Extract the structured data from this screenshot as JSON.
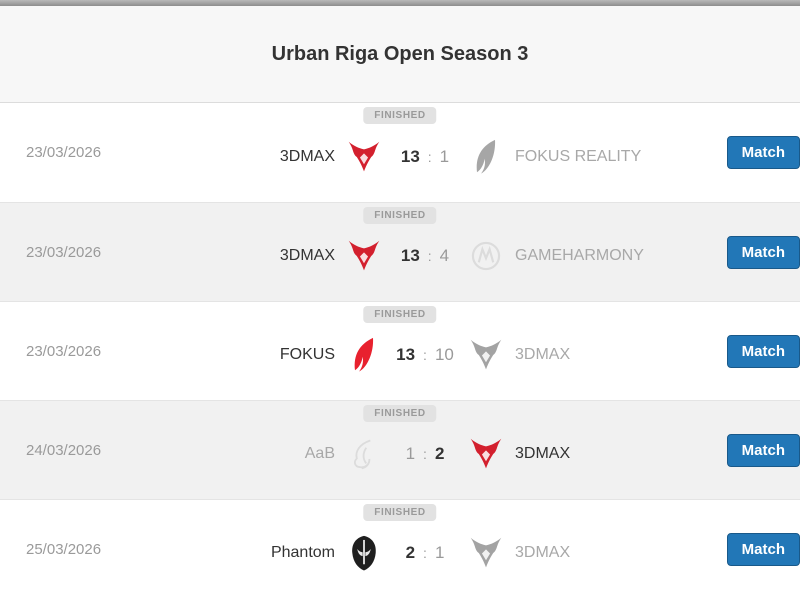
{
  "page": {
    "title": "Urban Riga Open Season 3"
  },
  "labels": {
    "score_separator": ":"
  },
  "colors": {
    "accent_blue": "#2277b7",
    "devil_red": "#d3202e",
    "fokus_red": "#e8212e",
    "phantom_black": "#1f1f1f",
    "badge_bg": "#e2e2e2",
    "muted_text": "#9a9a9a",
    "dark_text": "#333333"
  },
  "matches": [
    {
      "date": "23/03/2026",
      "status": "FINISHED",
      "button_label": "Match",
      "score1": "13",
      "score2": "1",
      "team1": {
        "name": "3DMAX",
        "logo": "devil-logo",
        "winner": true
      },
      "team2": {
        "name": "FOKUS REALITY",
        "logo": "fokus-logo",
        "winner": false
      }
    },
    {
      "date": "23/03/2026",
      "status": "FINISHED",
      "button_label": "Match",
      "score1": "13",
      "score2": "4",
      "team1": {
        "name": "3DMAX",
        "logo": "devil-logo",
        "winner": true
      },
      "team2": {
        "name": "GAMEHARMONY",
        "logo": "gameharmony-logo",
        "winner": false
      }
    },
    {
      "date": "23/03/2026",
      "status": "FINISHED",
      "button_label": "Match",
      "score1": "13",
      "score2": "10",
      "team1": {
        "name": "FOKUS",
        "logo": "fokus-logo",
        "winner": true
      },
      "team2": {
        "name": "3DMAX",
        "logo": "devil-logo",
        "winner": false
      }
    },
    {
      "date": "24/03/2026",
      "status": "FINISHED",
      "button_label": "Match",
      "score1": "1",
      "score2": "2",
      "team1": {
        "name": "AaB",
        "logo": "aab-logo",
        "winner": false
      },
      "team2": {
        "name": "3DMAX",
        "logo": "devil-logo",
        "winner": true
      }
    },
    {
      "date": "25/03/2026",
      "status": "FINISHED",
      "button_label": "Match",
      "score1": "2",
      "score2": "1",
      "team1": {
        "name": "Phantom",
        "logo": "phantom-logo",
        "winner": true
      },
      "team2": {
        "name": "3DMAX",
        "logo": "devil-logo",
        "winner": false
      }
    }
  ]
}
